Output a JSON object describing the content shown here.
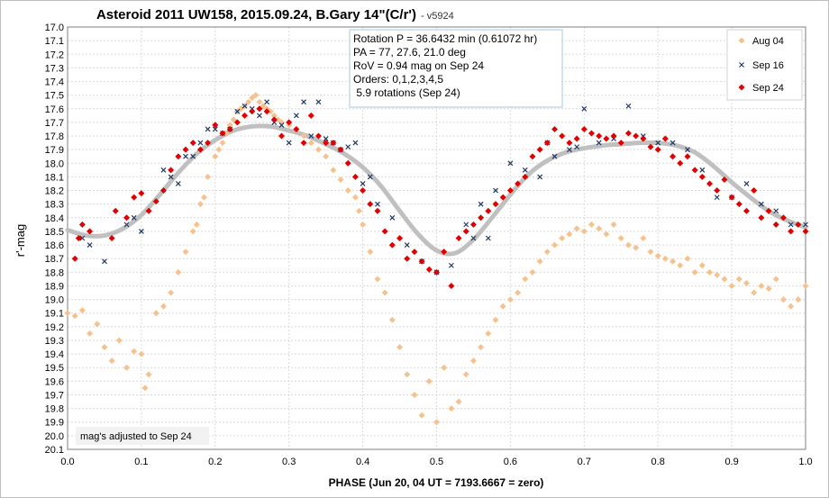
{
  "chart_data": {
    "type": "scatter",
    "title": "Asteroid 2011 UW158, 2015.09.24, B.Gary 14\"(C/r')",
    "version": "- v5924",
    "xlabel": "PHASE (Jun 20, 04 UT = 7193.6667 = zero)",
    "ylabel": "r'-mag",
    "xlim": [
      0.0,
      1.0
    ],
    "ylim": [
      17.0,
      20.1
    ],
    "y_inverted": true,
    "x_ticks": [
      "0.0",
      "0.1",
      "0.2",
      "0.3",
      "0.4",
      "0.5",
      "0.6",
      "0.7",
      "0.8",
      "0.9",
      "1.0"
    ],
    "y_ticks": [
      "17.0",
      "17.1",
      "17.2",
      "17.3",
      "17.4",
      "17.5",
      "17.6",
      "17.7",
      "17.8",
      "17.9",
      "18.0",
      "18.1",
      "18.2",
      "18.3",
      "18.4",
      "18.5",
      "18.6",
      "18.7",
      "18.8",
      "18.9",
      "19.0",
      "19.1",
      "19.2",
      "19.3",
      "19.4",
      "19.5",
      "19.6",
      "19.7",
      "19.8",
      "19.9",
      "20.0",
      "20.1"
    ],
    "grid": true,
    "legend_position": "top-right",
    "info_box": [
      "Rotation P = 36.6432 min (0.61072 hr)",
      "PA =  77, 27.6, 21.0 deg",
      "RoV = 0.94 mag on Sep 24",
      "Orders: 0,1,2,3,4,5",
      " 5.9 rotations (Sep 24)"
    ],
    "note": "mag's adjusted to Sep 24",
    "fit_color": "#c0c0c0",
    "fit": {
      "x": [
        0.0,
        0.025,
        0.05,
        0.075,
        0.1,
        0.125,
        0.15,
        0.175,
        0.2,
        0.225,
        0.25,
        0.275,
        0.3,
        0.325,
        0.35,
        0.375,
        0.4,
        0.425,
        0.45,
        0.475,
        0.5,
        0.525,
        0.55,
        0.575,
        0.6,
        0.625,
        0.65,
        0.675,
        0.7,
        0.725,
        0.75,
        0.775,
        0.8,
        0.825,
        0.85,
        0.875,
        0.9,
        0.925,
        0.95,
        0.975,
        1.0
      ],
      "y": [
        18.49,
        18.53,
        18.53,
        18.48,
        18.38,
        18.23,
        18.07,
        17.93,
        17.83,
        17.76,
        17.73,
        17.73,
        17.76,
        17.8,
        17.86,
        17.93,
        18.03,
        18.17,
        18.35,
        18.52,
        18.64,
        18.66,
        18.56,
        18.4,
        18.23,
        18.08,
        17.98,
        17.92,
        17.89,
        17.87,
        17.86,
        17.85,
        17.85,
        17.87,
        17.92,
        18.02,
        18.14,
        18.25,
        18.35,
        18.42,
        18.47
      ]
    },
    "series": [
      {
        "name": "Aug 04",
        "marker": "diamond",
        "color": "#f5c28f",
        "x": [
          0.0,
          0.01,
          0.02,
          0.03,
          0.04,
          0.05,
          0.06,
          0.07,
          0.08,
          0.09,
          0.1,
          0.105,
          0.11,
          0.12,
          0.13,
          0.14,
          0.15,
          0.16,
          0.17,
          0.175,
          0.18,
          0.185,
          0.19,
          0.2,
          0.205,
          0.21,
          0.215,
          0.22,
          0.225,
          0.23,
          0.235,
          0.24,
          0.245,
          0.25,
          0.255,
          0.26,
          0.265,
          0.27,
          0.275,
          0.28,
          0.285,
          0.29,
          0.3,
          0.31,
          0.32,
          0.33,
          0.34,
          0.35,
          0.36,
          0.37,
          0.38,
          0.39,
          0.395,
          0.4,
          0.41,
          0.42,
          0.43,
          0.44,
          0.45,
          0.46,
          0.47,
          0.48,
          0.49,
          0.5,
          0.51,
          0.52,
          0.53,
          0.54,
          0.55,
          0.56,
          0.57,
          0.58,
          0.59,
          0.6,
          0.61,
          0.62,
          0.63,
          0.64,
          0.65,
          0.66,
          0.67,
          0.68,
          0.69,
          0.7,
          0.71,
          0.72,
          0.73,
          0.74,
          0.75,
          0.76,
          0.77,
          0.78,
          0.79,
          0.8,
          0.81,
          0.82,
          0.83,
          0.84,
          0.85,
          0.86,
          0.87,
          0.88,
          0.89,
          0.9,
          0.91,
          0.92,
          0.93,
          0.94,
          0.95,
          0.96,
          0.97,
          0.98,
          0.99,
          1.0
        ],
        "y": [
          19.1,
          19.12,
          19.08,
          19.25,
          19.18,
          19.35,
          19.45,
          19.3,
          19.5,
          19.38,
          19.4,
          19.65,
          19.55,
          19.1,
          19.05,
          18.95,
          18.8,
          18.65,
          18.5,
          18.45,
          18.3,
          18.25,
          18.1,
          17.95,
          17.9,
          17.85,
          17.78,
          17.72,
          17.68,
          17.62,
          17.6,
          17.58,
          17.55,
          17.52,
          17.5,
          17.55,
          17.58,
          17.6,
          17.62,
          17.65,
          17.68,
          17.7,
          17.72,
          17.75,
          17.8,
          17.85,
          17.9,
          17.95,
          18.05,
          18.12,
          18.2,
          18.25,
          18.35,
          18.45,
          18.65,
          18.85,
          18.95,
          19.15,
          19.35,
          19.55,
          19.7,
          19.85,
          19.6,
          19.9,
          19.5,
          19.8,
          19.75,
          19.55,
          19.45,
          19.35,
          19.25,
          19.15,
          19.05,
          19.0,
          18.95,
          18.85,
          18.8,
          18.72,
          18.65,
          18.6,
          18.55,
          18.52,
          18.48,
          18.5,
          18.45,
          18.48,
          18.52,
          18.45,
          18.55,
          18.6,
          18.62,
          18.55,
          18.65,
          18.68,
          18.7,
          18.72,
          18.75,
          18.7,
          18.8,
          18.75,
          18.8,
          18.82,
          18.85,
          18.9,
          18.85,
          18.88,
          18.95,
          18.9,
          18.92,
          18.85,
          19.0,
          19.05,
          19.0,
          18.9
        ]
      },
      {
        "name": "Sep 16",
        "marker": "x",
        "color": "#1f3864",
        "x": [
          0.02,
          0.03,
          0.05,
          0.08,
          0.09,
          0.1,
          0.13,
          0.14,
          0.15,
          0.16,
          0.17,
          0.18,
          0.19,
          0.2,
          0.21,
          0.22,
          0.23,
          0.24,
          0.25,
          0.26,
          0.27,
          0.28,
          0.29,
          0.3,
          0.31,
          0.32,
          0.33,
          0.34,
          0.35,
          0.36,
          0.37,
          0.38,
          0.39,
          0.4,
          0.41,
          0.42,
          0.44,
          0.46,
          0.48,
          0.5,
          0.52,
          0.54,
          0.55,
          0.56,
          0.57,
          0.58,
          0.6,
          0.62,
          0.64,
          0.65,
          0.66,
          0.68,
          0.69,
          0.7,
          0.72,
          0.74,
          0.76,
          0.78,
          0.8,
          0.82,
          0.84,
          0.86,
          0.88,
          0.9,
          0.92,
          0.94,
          0.96,
          0.98,
          1.0
        ],
        "y": [
          18.55,
          18.6,
          18.72,
          18.45,
          18.4,
          18.5,
          18.05,
          18.1,
          18.15,
          17.95,
          17.95,
          17.85,
          17.75,
          17.75,
          17.78,
          17.75,
          17.62,
          17.58,
          17.6,
          17.65,
          17.55,
          17.7,
          17.72,
          17.85,
          17.65,
          17.55,
          17.8,
          17.55,
          17.82,
          17.85,
          17.9,
          17.88,
          17.85,
          18.15,
          18.1,
          18.3,
          18.4,
          18.6,
          18.72,
          18.8,
          18.75,
          18.45,
          18.55,
          18.3,
          18.55,
          18.2,
          18.0,
          18.05,
          18.1,
          17.85,
          17.95,
          17.9,
          17.88,
          17.6,
          17.85,
          17.82,
          17.58,
          17.8,
          17.85,
          17.85,
          17.9,
          18.05,
          18.25,
          18.25,
          18.15,
          18.3,
          18.35,
          18.45,
          18.45
        ]
      },
      {
        "name": "Sep 24",
        "marker": "diamond",
        "color": "#e00000",
        "x": [
          0.01,
          0.015,
          0.02,
          0.03,
          0.06,
          0.065,
          0.08,
          0.09,
          0.1,
          0.11,
          0.12,
          0.13,
          0.14,
          0.15,
          0.16,
          0.17,
          0.18,
          0.19,
          0.2,
          0.21,
          0.22,
          0.23,
          0.24,
          0.25,
          0.26,
          0.27,
          0.28,
          0.29,
          0.3,
          0.31,
          0.32,
          0.33,
          0.34,
          0.35,
          0.36,
          0.37,
          0.38,
          0.39,
          0.4,
          0.41,
          0.42,
          0.43,
          0.44,
          0.45,
          0.46,
          0.47,
          0.48,
          0.49,
          0.5,
          0.51,
          0.52,
          0.53,
          0.54,
          0.55,
          0.56,
          0.57,
          0.58,
          0.59,
          0.6,
          0.61,
          0.62,
          0.63,
          0.64,
          0.65,
          0.66,
          0.67,
          0.68,
          0.69,
          0.7,
          0.71,
          0.72,
          0.73,
          0.74,
          0.75,
          0.76,
          0.77,
          0.78,
          0.79,
          0.8,
          0.81,
          0.82,
          0.83,
          0.84,
          0.85,
          0.86,
          0.87,
          0.88,
          0.89,
          0.9,
          0.91,
          0.92,
          0.93,
          0.94,
          0.95,
          0.96,
          0.97,
          0.98,
          0.99,
          1.0
        ],
        "y": [
          18.7,
          18.55,
          18.45,
          18.5,
          18.55,
          18.35,
          18.4,
          18.25,
          18.22,
          18.35,
          18.28,
          18.2,
          18.05,
          17.95,
          17.9,
          17.85,
          17.9,
          17.85,
          17.72,
          17.78,
          17.75,
          17.7,
          17.65,
          17.62,
          17.6,
          17.62,
          17.68,
          17.8,
          17.7,
          17.75,
          17.85,
          17.65,
          17.8,
          17.85,
          17.85,
          17.9,
          18.0,
          18.1,
          18.2,
          18.3,
          18.35,
          18.5,
          18.6,
          18.55,
          18.7,
          18.65,
          18.72,
          18.78,
          18.8,
          18.65,
          18.9,
          18.55,
          18.5,
          18.45,
          18.4,
          18.35,
          18.3,
          18.25,
          18.2,
          18.15,
          18.1,
          17.95,
          17.9,
          17.85,
          17.75,
          17.8,
          17.85,
          17.82,
          17.75,
          17.78,
          17.8,
          17.82,
          17.8,
          17.85,
          17.78,
          17.8,
          17.82,
          17.88,
          17.9,
          17.82,
          17.95,
          18.0,
          17.95,
          18.05,
          18.1,
          18.15,
          18.2,
          18.12,
          18.25,
          18.3,
          18.35,
          18.2,
          18.4,
          18.35,
          18.45,
          18.4,
          18.5,
          18.45,
          18.5
        ]
      }
    ]
  }
}
